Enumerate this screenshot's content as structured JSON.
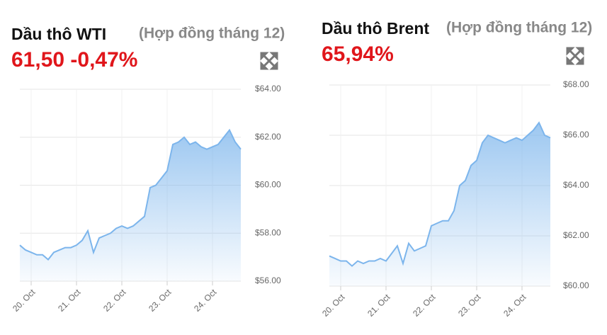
{
  "chart_data": [
    {
      "type": "area",
      "title": "Dầu thô WTI",
      "subtitle": "(Hợp đồng tháng 12)",
      "annotation": "61,50 -0,47%",
      "color": "#7cb5ec",
      "grid": true,
      "categories": [
        null,
        null,
        "20. Oct",
        null,
        null,
        null,
        null,
        null,
        null,
        null,
        "21. Oct",
        null,
        null,
        null,
        null,
        null,
        null,
        null,
        "22. Oct",
        null,
        null,
        null,
        null,
        null,
        null,
        null,
        "23. Oct",
        null,
        null,
        null,
        null,
        null,
        null,
        null,
        "24. Oct",
        null,
        null,
        null,
        null,
        null
      ],
      "values": [
        57.5,
        57.3,
        57.2,
        57.1,
        57.1,
        56.9,
        57.2,
        57.3,
        57.4,
        57.4,
        57.5,
        57.7,
        58.1,
        57.2,
        57.8,
        57.9,
        58.0,
        58.2,
        58.3,
        58.2,
        58.3,
        58.5,
        58.7,
        59.9,
        60.0,
        60.3,
        60.6,
        61.7,
        61.8,
        62.0,
        61.7,
        61.8,
        61.6,
        61.5,
        61.6,
        61.7,
        62.0,
        62.3,
        61.8,
        61.5
      ],
      "ylim": [
        56,
        64
      ],
      "yticks": [
        {
          "value": 56,
          "label": "$56.00"
        },
        {
          "value": 58,
          "label": "$58.00"
        },
        {
          "value": 60,
          "label": "$60.00"
        },
        {
          "value": 62,
          "label": "$62.00"
        },
        {
          "value": 64,
          "label": "$64.00"
        }
      ]
    },
    {
      "type": "area",
      "title": "Dầu thô Brent",
      "subtitle": "(Hợp đồng tháng 12)",
      "annotation": "65,94%",
      "color": "#7cb5ec",
      "grid": true,
      "categories": [
        null,
        null,
        "20. Oct",
        null,
        null,
        null,
        null,
        null,
        null,
        null,
        "21. Oct",
        null,
        null,
        null,
        null,
        null,
        null,
        null,
        "22. Oct",
        null,
        null,
        null,
        null,
        null,
        null,
        null,
        "23. Oct",
        null,
        null,
        null,
        null,
        null,
        null,
        null,
        "24. Oct",
        null,
        null,
        null,
        null,
        null
      ],
      "values": [
        61.2,
        61.1,
        61.0,
        61.0,
        60.8,
        61.0,
        60.9,
        61.0,
        61.0,
        61.1,
        61.0,
        61.3,
        61.6,
        60.9,
        61.7,
        61.4,
        61.5,
        61.6,
        62.4,
        62.5,
        62.6,
        62.6,
        63.0,
        64.0,
        64.2,
        64.8,
        65.0,
        65.7,
        66.0,
        65.9,
        65.8,
        65.7,
        65.8,
        65.9,
        65.8,
        66.0,
        66.2,
        66.5,
        66.0,
        65.9
      ],
      "ylim": [
        60,
        68
      ],
      "yticks": [
        {
          "value": 60,
          "label": "$60.00"
        },
        {
          "value": 62,
          "label": "$62.00"
        },
        {
          "value": 64,
          "label": "$64.00"
        },
        {
          "value": 66,
          "label": "$66.00"
        },
        {
          "value": 68,
          "label": "$68.00"
        }
      ]
    }
  ]
}
